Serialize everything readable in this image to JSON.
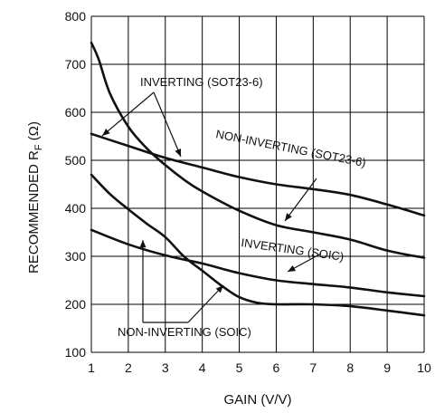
{
  "chart_data": {
    "type": "line",
    "xlabel": "GAIN (V/V)",
    "ylabel_prefix": "RECOMMENDED R",
    "ylabel_sub": "F",
    "ylabel_suffix": " (Ω)",
    "xlim": [
      1,
      10
    ],
    "ylim": [
      100,
      800
    ],
    "xticks": [
      1,
      2,
      3,
      4,
      5,
      6,
      7,
      8,
      9,
      10
    ],
    "yticks": [
      100,
      200,
      300,
      400,
      500,
      600,
      700,
      800
    ],
    "grid": true,
    "series": [
      {
        "name": "INVERTING (SOT23-6)",
        "x": [
          1,
          1.2,
          1.5,
          2,
          2.5,
          3,
          3.5,
          4,
          5,
          6,
          7,
          8,
          9,
          10
        ],
        "y": [
          745,
          710,
          640,
          570,
          525,
          490,
          460,
          435,
          395,
          365,
          350,
          335,
          312,
          297
        ]
      },
      {
        "name": "NON-INVERTING (SOT23-6)",
        "x": [
          1,
          2,
          3,
          4,
          5,
          6,
          7,
          8,
          9,
          10
        ],
        "y": [
          555,
          530,
          505,
          485,
          465,
          450,
          440,
          428,
          408,
          385
        ]
      },
      {
        "name": "INVERTING (SOIC)",
        "x": [
          1,
          2,
          3,
          4,
          5,
          6,
          7,
          8,
          9,
          10
        ],
        "y": [
          355,
          325,
          302,
          285,
          265,
          250,
          242,
          235,
          225,
          217
        ]
      },
      {
        "name": "NON-INVERTING (SOIC)",
        "x": [
          1,
          1.5,
          2,
          2.5,
          3,
          3.5,
          4,
          4.5,
          5,
          5.5,
          6,
          7,
          8,
          9,
          10
        ],
        "y": [
          470,
          430,
          398,
          368,
          340,
          300,
          270,
          240,
          215,
          203,
          200,
          200,
          196,
          187,
          177
        ]
      }
    ],
    "annotations": [
      {
        "text": "INVERTING (SOT23-6)"
      },
      {
        "text": "NON-INVERTING (SOT23-6)"
      },
      {
        "text": "INVERTING (SOIC)"
      },
      {
        "text": "NON-INVERTING (SOIC)"
      }
    ]
  }
}
